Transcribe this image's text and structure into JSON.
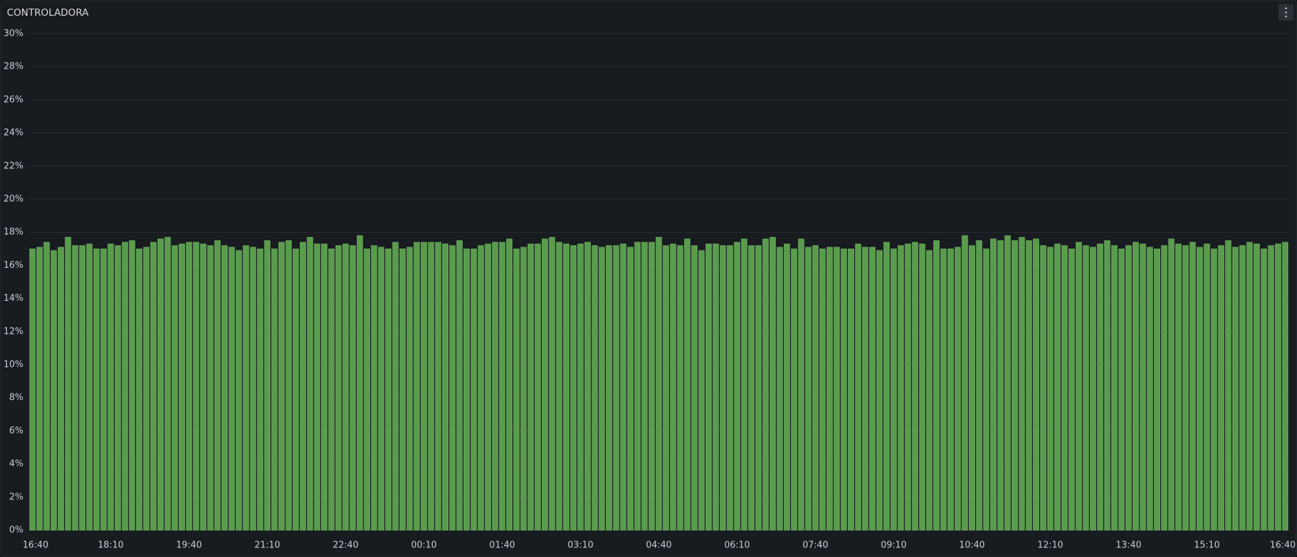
{
  "chart_data": {
    "type": "bar",
    "title": "CONTROLADORA",
    "categories": [
      "16:40",
      null,
      null,
      null,
      null,
      null,
      null,
      null,
      null,
      null,
      null,
      "18:10",
      null,
      null,
      null,
      null,
      null,
      null,
      null,
      null,
      null,
      null,
      "19:40",
      null,
      null,
      null,
      null,
      null,
      null,
      null,
      null,
      null,
      null,
      "21:10",
      null,
      null,
      null,
      null,
      null,
      null,
      null,
      null,
      null,
      null,
      "22:40",
      null,
      null,
      null,
      null,
      null,
      null,
      null,
      null,
      null,
      null,
      "00:10",
      null,
      null,
      null,
      null,
      null,
      null,
      null,
      null,
      null,
      null,
      "01:40",
      null,
      null,
      null,
      null,
      null,
      null,
      null,
      null,
      null,
      null,
      "03:10",
      null,
      null,
      null,
      null,
      null,
      null,
      null,
      null,
      null,
      null,
      "04:40",
      null,
      null,
      null,
      null,
      null,
      null,
      null,
      null,
      null,
      null,
      "06:10",
      null,
      null,
      null,
      null,
      null,
      null,
      null,
      null,
      null,
      null,
      "07:40",
      null,
      null,
      null,
      null,
      null,
      null,
      null,
      null,
      null,
      null,
      "09:10",
      null,
      null,
      null,
      null,
      null,
      null,
      null,
      null,
      null,
      null,
      "10:40",
      null,
      null,
      null,
      null,
      null,
      null,
      null,
      null,
      null,
      null,
      "12:10",
      null,
      null,
      null,
      null,
      null,
      null,
      null,
      null,
      null,
      null,
      "13:40",
      null,
      null,
      null,
      null,
      null,
      null,
      null,
      null,
      null,
      null,
      "15:10",
      null,
      null,
      null,
      null,
      null,
      null,
      null,
      null,
      null,
      null,
      "16:40"
    ],
    "values": [
      17.0,
      17.1,
      17.4,
      16.9,
      17.1,
      17.7,
      17.2,
      17.2,
      17.3,
      17.0,
      17.0,
      17.3,
      17.2,
      17.4,
      17.5,
      17.0,
      17.1,
      17.4,
      17.6,
      17.7,
      17.2,
      17.3,
      17.4,
      17.4,
      17.3,
      17.2,
      17.5,
      17.2,
      17.1,
      16.9,
      17.2,
      17.1,
      17.0,
      17.5,
      17.0,
      17.4,
      17.5,
      17.0,
      17.4,
      17.7,
      17.3,
      17.3,
      17.0,
      17.2,
      17.3,
      17.2,
      17.8,
      17.0,
      17.2,
      17.1,
      17.0,
      17.4,
      17.0,
      17.1,
      17.4,
      17.4,
      17.4,
      17.4,
      17.3,
      17.2,
      17.5,
      17.0,
      17.0,
      17.2,
      17.3,
      17.4,
      17.4,
      17.6,
      17.0,
      17.1,
      17.3,
      17.3,
      17.6,
      17.7,
      17.4,
      17.3,
      17.2,
      17.3,
      17.4,
      17.2,
      17.1,
      17.2,
      17.2,
      17.3,
      17.1,
      17.4,
      17.4,
      17.4,
      17.7,
      17.2,
      17.3,
      17.2,
      17.6,
      17.2,
      16.9,
      17.3,
      17.3,
      17.2,
      17.2,
      17.4,
      17.6,
      17.2,
      17.2,
      17.6,
      17.7,
      17.1,
      17.3,
      17.0,
      17.6,
      17.1,
      17.2,
      17.0,
      17.1,
      17.1,
      17.0,
      17.0,
      17.3,
      17.1,
      17.1,
      16.9,
      17.4,
      17.0,
      17.2,
      17.3,
      17.4,
      17.3,
      16.9,
      17.5,
      17.0,
      17.0,
      17.1,
      17.8,
      17.2,
      17.5,
      17.0,
      17.6,
      17.5,
      17.8,
      17.5,
      17.7,
      17.5,
      17.6,
      17.2,
      17.1,
      17.3,
      17.2,
      17.0,
      17.4,
      17.2,
      17.1,
      17.3,
      17.5,
      17.2,
      17.0,
      17.2,
      17.4,
      17.3,
      17.1,
      17.0,
      17.2,
      17.6,
      17.3,
      17.2,
      17.4,
      17.1,
      17.3,
      17.0,
      17.2,
      17.5,
      17.1,
      17.2,
      17.4,
      17.3,
      17.0,
      17.2,
      17.3,
      17.4
    ],
    "color": "#5a9c4e",
    "ylim": [
      0,
      30
    ],
    "yticks": [
      {
        "value": 0,
        "label": "0%"
      },
      {
        "value": 2,
        "label": "2%"
      },
      {
        "value": 4,
        "label": "4%"
      },
      {
        "value": 6,
        "label": "6%"
      },
      {
        "value": 8,
        "label": "8%"
      },
      {
        "value": 10,
        "label": "10%"
      },
      {
        "value": 12,
        "label": "12%"
      },
      {
        "value": 14,
        "label": "14%"
      },
      {
        "value": 16,
        "label": "16%"
      },
      {
        "value": 18,
        "label": "18%"
      },
      {
        "value": 20,
        "label": "20%"
      },
      {
        "value": 22,
        "label": "22%"
      },
      {
        "value": 24,
        "label": "24%"
      },
      {
        "value": 26,
        "label": "26%"
      },
      {
        "value": 28,
        "label": "28%"
      },
      {
        "value": 30,
        "label": "30%"
      }
    ],
    "grid": true
  }
}
